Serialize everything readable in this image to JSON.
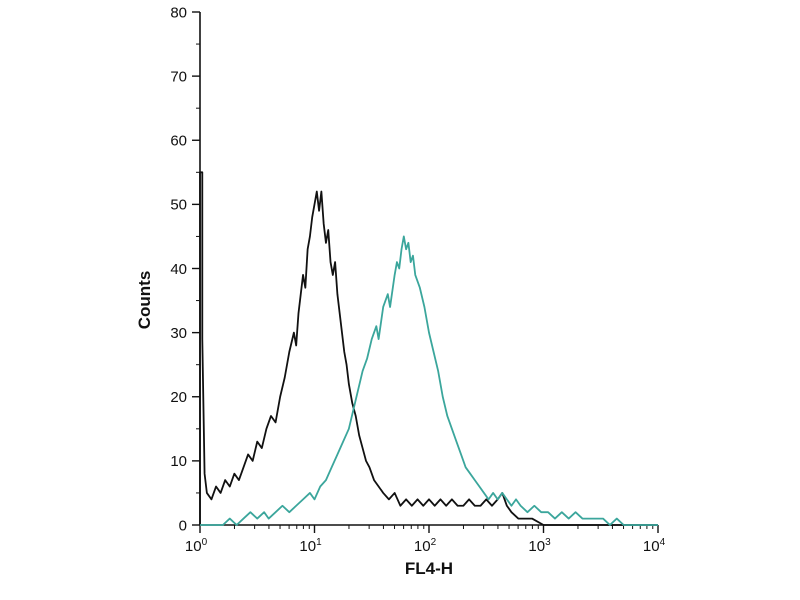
{
  "chart_data": {
    "type": "line",
    "subtype": "flow-cytometry-histogram-overlay",
    "title": "",
    "xlabel": "FL4-H",
    "ylabel": "Counts",
    "x_scale": "log",
    "x_log_range": [
      0,
      4
    ],
    "ylim": [
      0,
      80
    ],
    "y_ticks": [
      0,
      10,
      20,
      30,
      40,
      50,
      60,
      70,
      80
    ],
    "y_minor_step": 5,
    "x_tick_exponents": [
      0,
      1,
      2,
      3,
      4
    ],
    "grid": false,
    "legend": "none",
    "axis_color": "#111111",
    "background_color": "#ffffff",
    "series": [
      {
        "name": "black",
        "color": "#111111",
        "points": [
          [
            0.0,
            0
          ],
          [
            0.0,
            55
          ],
          [
            0.02,
            55
          ],
          [
            0.02,
            29
          ],
          [
            0.04,
            8
          ],
          [
            0.06,
            5
          ],
          [
            0.1,
            4
          ],
          [
            0.14,
            6
          ],
          [
            0.18,
            5
          ],
          [
            0.22,
            7
          ],
          [
            0.26,
            6
          ],
          [
            0.3,
            8
          ],
          [
            0.34,
            7
          ],
          [
            0.38,
            9
          ],
          [
            0.42,
            11
          ],
          [
            0.46,
            10
          ],
          [
            0.5,
            13
          ],
          [
            0.54,
            12
          ],
          [
            0.58,
            15
          ],
          [
            0.62,
            17
          ],
          [
            0.66,
            16
          ],
          [
            0.7,
            20
          ],
          [
            0.74,
            23
          ],
          [
            0.78,
            27
          ],
          [
            0.82,
            30
          ],
          [
            0.84,
            28
          ],
          [
            0.86,
            33
          ],
          [
            0.88,
            36
          ],
          [
            0.9,
            39
          ],
          [
            0.92,
            37
          ],
          [
            0.94,
            43
          ],
          [
            0.96,
            45
          ],
          [
            0.98,
            48
          ],
          [
            1.0,
            50
          ],
          [
            1.02,
            52
          ],
          [
            1.04,
            49
          ],
          [
            1.06,
            52
          ],
          [
            1.08,
            47
          ],
          [
            1.1,
            44
          ],
          [
            1.12,
            46
          ],
          [
            1.14,
            41
          ],
          [
            1.16,
            39
          ],
          [
            1.18,
            41
          ],
          [
            1.2,
            36
          ],
          [
            1.22,
            33
          ],
          [
            1.24,
            30
          ],
          [
            1.26,
            27
          ],
          [
            1.28,
            25
          ],
          [
            1.3,
            22
          ],
          [
            1.33,
            19
          ],
          [
            1.36,
            17
          ],
          [
            1.39,
            14
          ],
          [
            1.42,
            12
          ],
          [
            1.45,
            10
          ],
          [
            1.48,
            9
          ],
          [
            1.52,
            7
          ],
          [
            1.56,
            6
          ],
          [
            1.6,
            5
          ],
          [
            1.65,
            4
          ],
          [
            1.7,
            5
          ],
          [
            1.75,
            3
          ],
          [
            1.8,
            4
          ],
          [
            1.85,
            3
          ],
          [
            1.9,
            4
          ],
          [
            1.95,
            3
          ],
          [
            2.0,
            4
          ],
          [
            2.05,
            3
          ],
          [
            2.1,
            4
          ],
          [
            2.15,
            3
          ],
          [
            2.2,
            4
          ],
          [
            2.25,
            3
          ],
          [
            2.3,
            3
          ],
          [
            2.35,
            4
          ],
          [
            2.4,
            3
          ],
          [
            2.45,
            3
          ],
          [
            2.5,
            4
          ],
          [
            2.55,
            3
          ],
          [
            2.6,
            4
          ],
          [
            2.64,
            5
          ],
          [
            2.68,
            3
          ],
          [
            2.72,
            2
          ],
          [
            2.78,
            1
          ],
          [
            2.84,
            1
          ],
          [
            2.9,
            1
          ],
          [
            3.0,
            0
          ],
          [
            3.2,
            0
          ],
          [
            3.6,
            0
          ],
          [
            4.0,
            0
          ]
        ]
      },
      {
        "name": "teal",
        "color": "#3ba69c",
        "points": [
          [
            0.0,
            0
          ],
          [
            0.2,
            0
          ],
          [
            0.26,
            1
          ],
          [
            0.32,
            0
          ],
          [
            0.38,
            1
          ],
          [
            0.44,
            2
          ],
          [
            0.5,
            1
          ],
          [
            0.56,
            2
          ],
          [
            0.6,
            1
          ],
          [
            0.66,
            2
          ],
          [
            0.72,
            3
          ],
          [
            0.78,
            2
          ],
          [
            0.84,
            3
          ],
          [
            0.9,
            4
          ],
          [
            0.96,
            5
          ],
          [
            1.0,
            4
          ],
          [
            1.05,
            6
          ],
          [
            1.1,
            7
          ],
          [
            1.15,
            9
          ],
          [
            1.2,
            11
          ],
          [
            1.25,
            13
          ],
          [
            1.3,
            15
          ],
          [
            1.34,
            18
          ],
          [
            1.38,
            21
          ],
          [
            1.42,
            24
          ],
          [
            1.46,
            26
          ],
          [
            1.5,
            29
          ],
          [
            1.54,
            31
          ],
          [
            1.56,
            29
          ],
          [
            1.6,
            34
          ],
          [
            1.64,
            36
          ],
          [
            1.66,
            34
          ],
          [
            1.7,
            39
          ],
          [
            1.72,
            41
          ],
          [
            1.74,
            40
          ],
          [
            1.76,
            43
          ],
          [
            1.78,
            45
          ],
          [
            1.8,
            43
          ],
          [
            1.82,
            44
          ],
          [
            1.84,
            41
          ],
          [
            1.86,
            42
          ],
          [
            1.88,
            39
          ],
          [
            1.92,
            37
          ],
          [
            1.96,
            34
          ],
          [
            2.0,
            30
          ],
          [
            2.04,
            27
          ],
          [
            2.08,
            24
          ],
          [
            2.12,
            20
          ],
          [
            2.16,
            17
          ],
          [
            2.2,
            15
          ],
          [
            2.24,
            13
          ],
          [
            2.28,
            11
          ],
          [
            2.32,
            9
          ],
          [
            2.36,
            8
          ],
          [
            2.4,
            7
          ],
          [
            2.44,
            6
          ],
          [
            2.48,
            5
          ],
          [
            2.52,
            4
          ],
          [
            2.56,
            5
          ],
          [
            2.6,
            4
          ],
          [
            2.64,
            5
          ],
          [
            2.68,
            4
          ],
          [
            2.72,
            3
          ],
          [
            2.76,
            4
          ],
          [
            2.8,
            3
          ],
          [
            2.86,
            2
          ],
          [
            2.92,
            3
          ],
          [
            2.98,
            2
          ],
          [
            3.04,
            2
          ],
          [
            3.1,
            1
          ],
          [
            3.16,
            2
          ],
          [
            3.22,
            1
          ],
          [
            3.28,
            2
          ],
          [
            3.34,
            1
          ],
          [
            3.4,
            1
          ],
          [
            3.46,
            1
          ],
          [
            3.52,
            1
          ],
          [
            3.58,
            0
          ],
          [
            3.64,
            1
          ],
          [
            3.7,
            0
          ],
          [
            3.8,
            0
          ],
          [
            3.9,
            0
          ],
          [
            4.0,
            0
          ]
        ]
      }
    ]
  }
}
